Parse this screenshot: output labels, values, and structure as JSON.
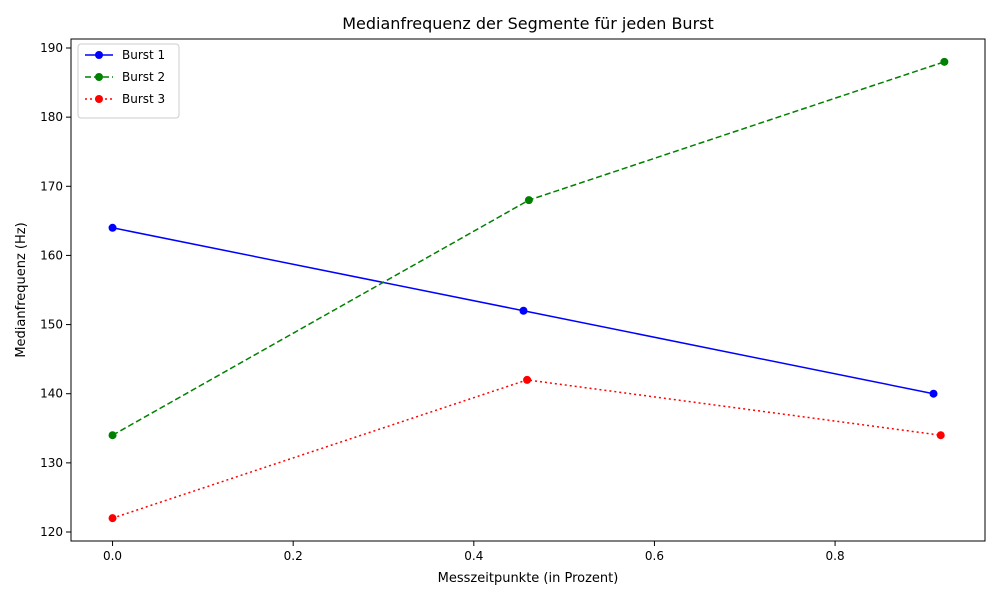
{
  "chart_data": {
    "type": "line",
    "title": "Medianfrequenz der Segmente für jeden Burst",
    "xlabel": "Messzeitpunkte (in Prozent)",
    "ylabel": "Medianfrequenz (Hz)",
    "xlim": [
      -0.046,
      0.966
    ],
    "ylim": [
      118.7,
      191.3
    ],
    "xticks": [
      0.0,
      0.2,
      0.4,
      0.6,
      0.8
    ],
    "xtick_labels": [
      "0.0",
      "0.2",
      "0.4",
      "0.6",
      "0.8"
    ],
    "yticks": [
      120,
      130,
      140,
      150,
      160,
      170,
      180,
      190
    ],
    "ytick_labels": [
      "120",
      "130",
      "140",
      "150",
      "160",
      "170",
      "180",
      "190"
    ],
    "grid": false,
    "legend_position": "top-left",
    "series": [
      {
        "name": "Burst 1",
        "color": "#0000ff",
        "linestyle": "solid",
        "marker": "circle",
        "x": [
          0.0,
          0.455,
          0.909
        ],
        "y": [
          164,
          152,
          140
        ]
      },
      {
        "name": "Burst 2",
        "color": "#008000",
        "linestyle": "dashed",
        "marker": "circle",
        "x": [
          0.0,
          0.461,
          0.921
        ],
        "y": [
          134,
          168,
          188
        ]
      },
      {
        "name": "Burst 3",
        "color": "#ff0000",
        "linestyle": "dotted",
        "marker": "circle",
        "x": [
          0.0,
          0.459,
          0.917
        ],
        "y": [
          122,
          142,
          134
        ]
      }
    ]
  }
}
